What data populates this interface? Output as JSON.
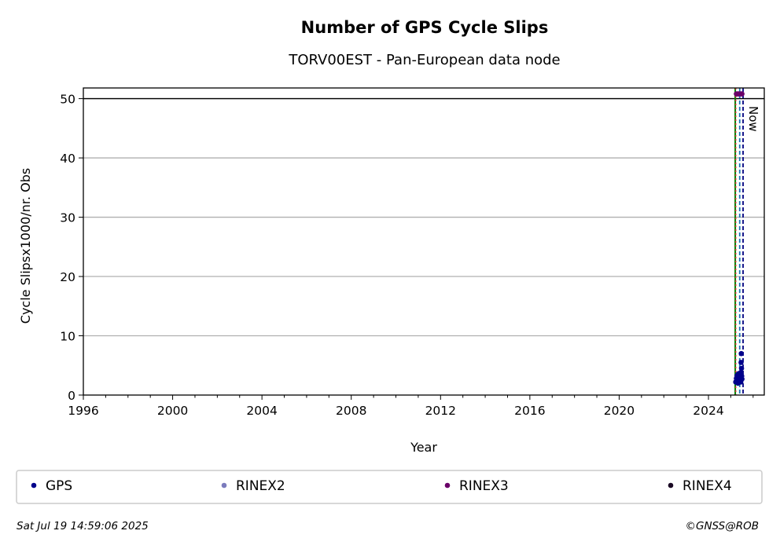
{
  "chart_data": {
    "type": "scatter",
    "title": "Number of GPS Cycle Slips",
    "subtitle": "TORV00EST - Pan-European data node",
    "xlabel": "Year",
    "ylabel": "Cycle Slipsx1000/nr. Obs",
    "xlim": [
      1996,
      2026.5
    ],
    "ylim": [
      0,
      51.8
    ],
    "xticks": [
      1996,
      2000,
      2004,
      2008,
      2012,
      2016,
      2020,
      2024
    ],
    "yticks": [
      0,
      10,
      20,
      30,
      40,
      50
    ],
    "grid": "horizontal",
    "max_line": 50,
    "now_label": "Now",
    "now_year": 2025.55,
    "start_markers": {
      "green_solid": 2025.2,
      "red_dotted": 2025.22
    },
    "dashed_lines": [
      {
        "x": 2025.4,
        "color": "#1f77b4"
      },
      {
        "x": 2025.55,
        "color": "#000080"
      }
    ],
    "series": [
      {
        "name": "GPS",
        "color": "#00008b",
        "points": [
          [
            2025.22,
            2.2
          ],
          [
            2025.25,
            2.8
          ],
          [
            2025.28,
            3.3
          ],
          [
            2025.3,
            2.5
          ],
          [
            2025.32,
            2.0
          ],
          [
            2025.34,
            3.6
          ],
          [
            2025.36,
            2.9
          ],
          [
            2025.38,
            2.4
          ],
          [
            2025.4,
            3.1
          ],
          [
            2025.42,
            2.6
          ],
          [
            2025.44,
            3.8
          ],
          [
            2025.45,
            2.2
          ],
          [
            2025.47,
            2.9
          ],
          [
            2025.48,
            4.5
          ],
          [
            2025.46,
            5.5
          ],
          [
            2025.47,
            7.0
          ],
          [
            2025.49,
            3.2
          ],
          [
            2025.5,
            2.7
          ]
        ]
      },
      {
        "name": "RINEX2",
        "color": "#7b7bbd",
        "points": []
      },
      {
        "name": "RINEX3",
        "color": "#6a0068",
        "points": [
          [
            2025.25,
            50.8
          ],
          [
            2025.3,
            50.8
          ],
          [
            2025.35,
            50.8
          ],
          [
            2025.4,
            50.8
          ],
          [
            2025.45,
            50.8
          ],
          [
            2025.5,
            50.8
          ]
        ]
      },
      {
        "name": "RINEX4",
        "color": "#1a0a24",
        "points": []
      }
    ]
  },
  "footer": {
    "timestamp": "Sat Jul 19 14:59:06 2025",
    "credit": "©GNSS@ROB"
  }
}
